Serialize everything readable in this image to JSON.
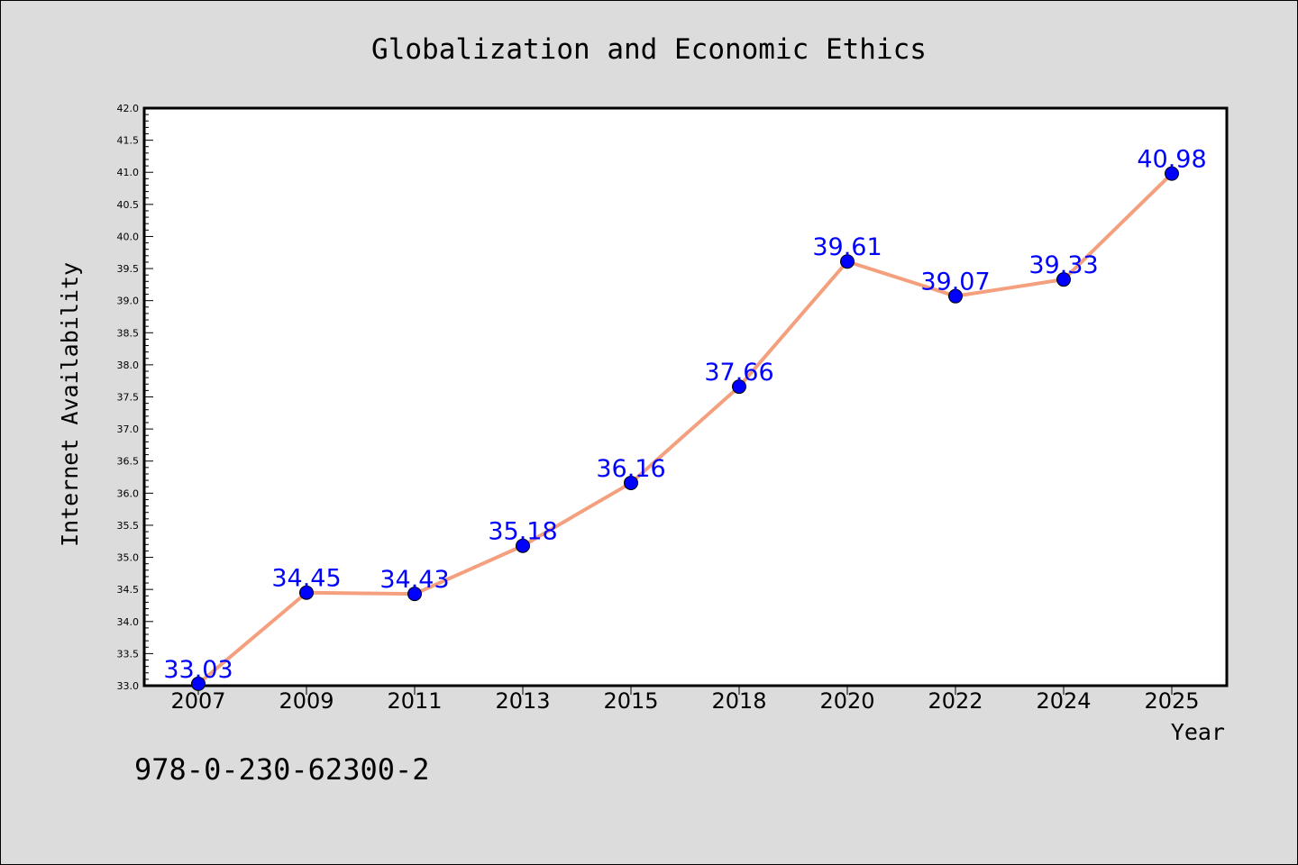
{
  "chart_data": {
    "type": "line",
    "title": "Globalization and Economic Ethics",
    "xlabel": "Year",
    "ylabel": "Internet Availability",
    "categories": [
      "2007",
      "2009",
      "2011",
      "2013",
      "2015",
      "2018",
      "2020",
      "2022",
      "2024",
      "2025"
    ],
    "series": [
      {
        "values": [
          33.03,
          34.45,
          34.43,
          35.18,
          36.16,
          37.66,
          39.61,
          39.07,
          39.33,
          40.98
        ],
        "data_labels": [
          "33.03",
          "34.45",
          "34.43",
          "35.18",
          "36.16",
          "37.66",
          "39.61",
          "39.07",
          "39.33",
          "40.98"
        ]
      }
    ],
    "ylim": [
      33.0,
      42.0
    ],
    "yticks": [
      "33.0",
      "33.5",
      "34.0",
      "34.5",
      "35.0",
      "35.5",
      "36.0",
      "36.5",
      "37.0",
      "37.5",
      "38.0",
      "38.5",
      "39.0",
      "39.5",
      "40.0",
      "40.5",
      "41.0",
      "41.5",
      "42.0"
    ],
    "line_color": "#f4a07e",
    "marker_color": "#0000ff",
    "label_color": "#0000ff",
    "background_color": "#dcdcdc",
    "plot_background": "#ffffff",
    "grid": false,
    "legend": "none"
  },
  "footer": {
    "isbn": "978-0-230-62300-2"
  }
}
